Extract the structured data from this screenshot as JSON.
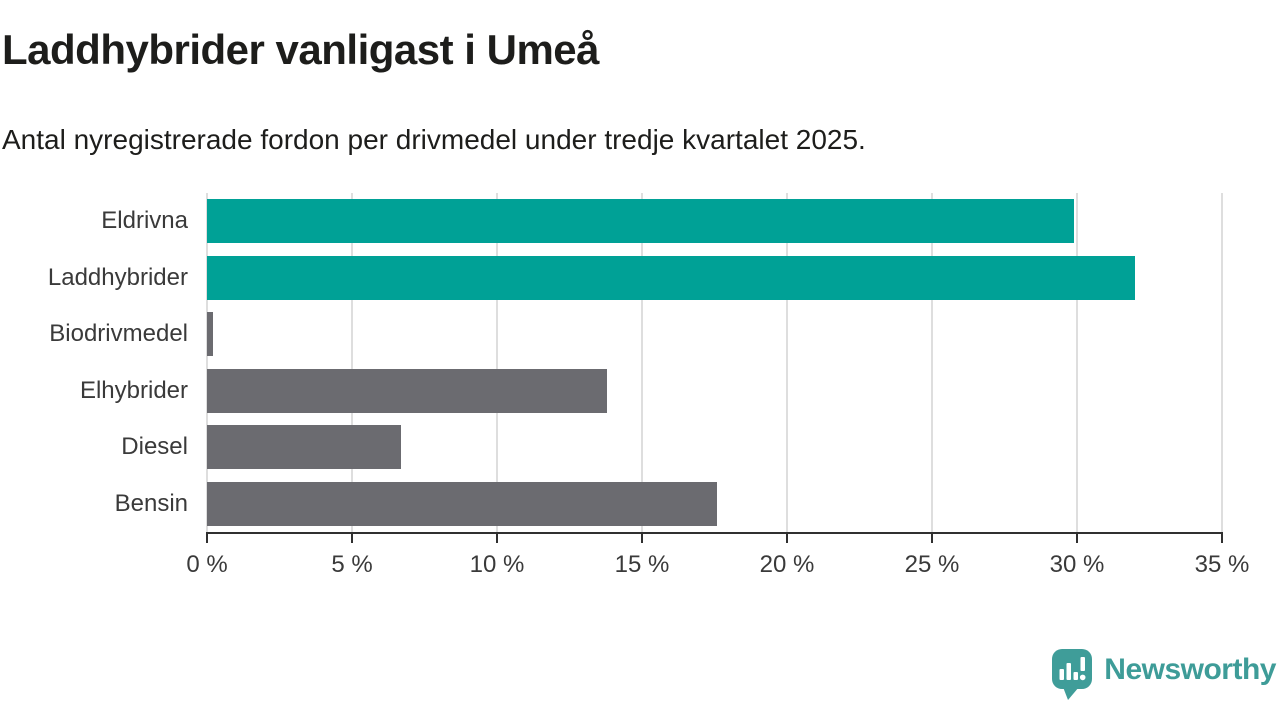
{
  "header": {
    "title": "Laddhybrider vanligast i Umeå",
    "subtitle": "Antal nyregistrerade fordon per drivmedel under tredje kvartalet 2025."
  },
  "chart_data": {
    "type": "bar",
    "orientation": "horizontal",
    "title": "Laddhybrider vanligast i Umeå",
    "subtitle": "Antal nyregistrerade fordon per drivmedel under tredje kvartalet 2025.",
    "categories": [
      "Eldrivna",
      "Laddhybrider",
      "Biodrivmedel",
      "Elhybrider",
      "Diesel",
      "Bensin"
    ],
    "values": [
      29.9,
      32.0,
      0.2,
      13.8,
      6.7,
      17.6
    ],
    "unit": "%",
    "bar_colors": [
      "#00a196",
      "#00a196",
      "#6b6b70",
      "#6b6b70",
      "#6b6b70",
      "#6b6b70"
    ],
    "highlight_color": "#00a196",
    "default_color": "#6b6b70",
    "xlim": [
      0,
      35
    ],
    "x_tick_values": [
      0,
      5,
      10,
      15,
      20,
      25,
      30,
      35
    ],
    "x_tick_labels": [
      "0 %",
      "5 %",
      "10 %",
      "15 %",
      "20 %",
      "25 %",
      "30 %",
      "35 %"
    ],
    "grid": "vertical",
    "gridline_color": "#dedede",
    "axis_color": "#303030",
    "legend": "none"
  },
  "footer": {
    "brand": "Newsworthy",
    "brand_color": "#3e9c98",
    "logo_icon": "bar-chart-speech-bubble-icon"
  }
}
